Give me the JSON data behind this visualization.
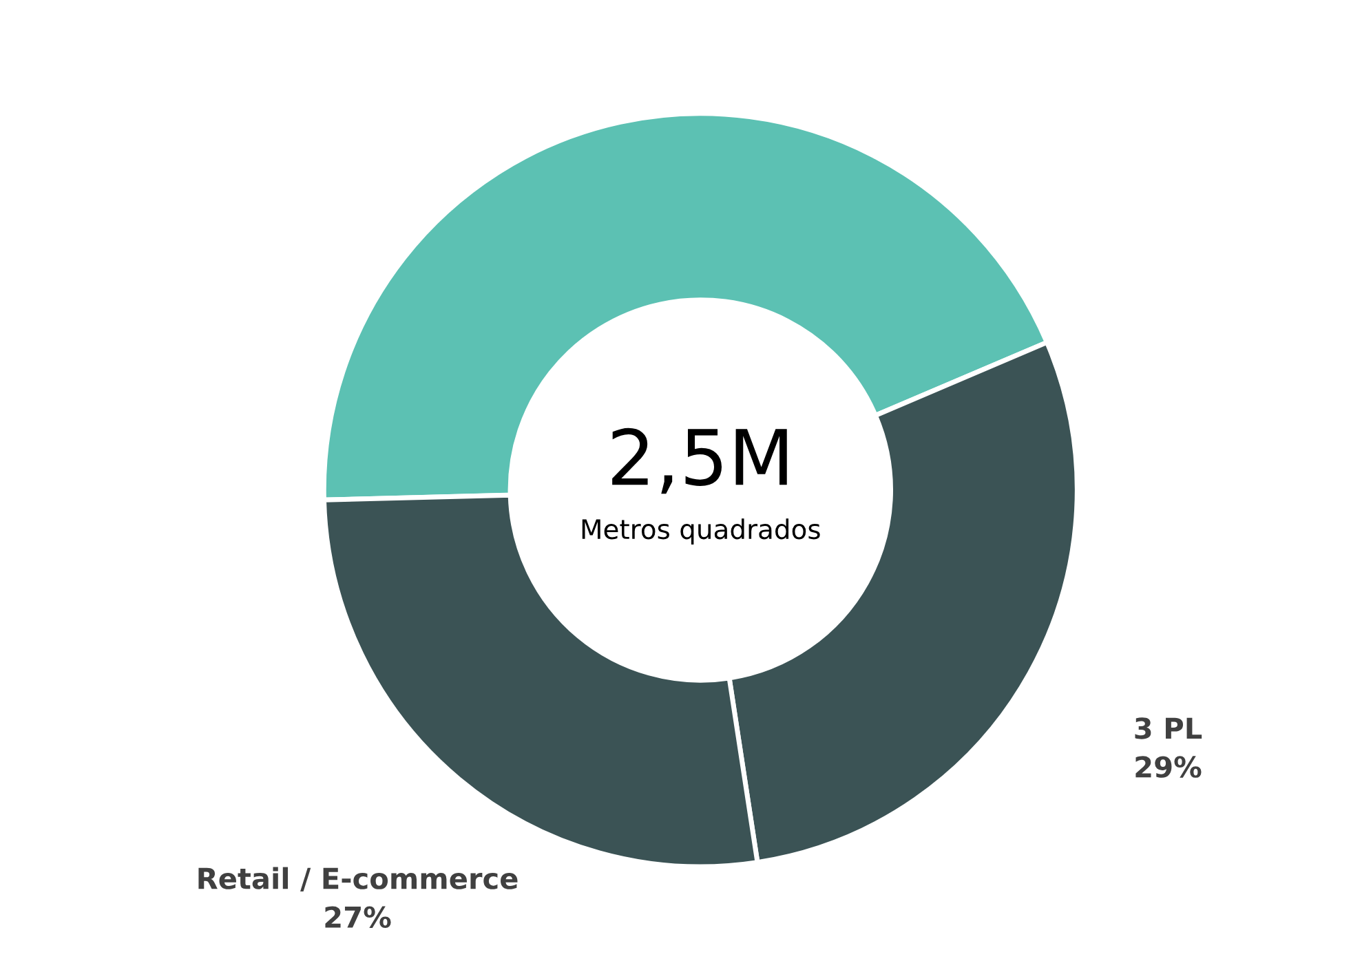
{
  "chart_data": {
    "type": "donut",
    "categories": [
      null,
      "3 PL",
      "Retail / E-commerce"
    ],
    "values": [
      44,
      29,
      27
    ],
    "colors": [
      "#5cc1b3",
      "#3b5355",
      "#3b5355"
    ],
    "value_labels": [
      null,
      "29%",
      "27%"
    ],
    "annotations": [
      "2,5M",
      "Metros quadrados"
    ],
    "legend": false
  }
}
